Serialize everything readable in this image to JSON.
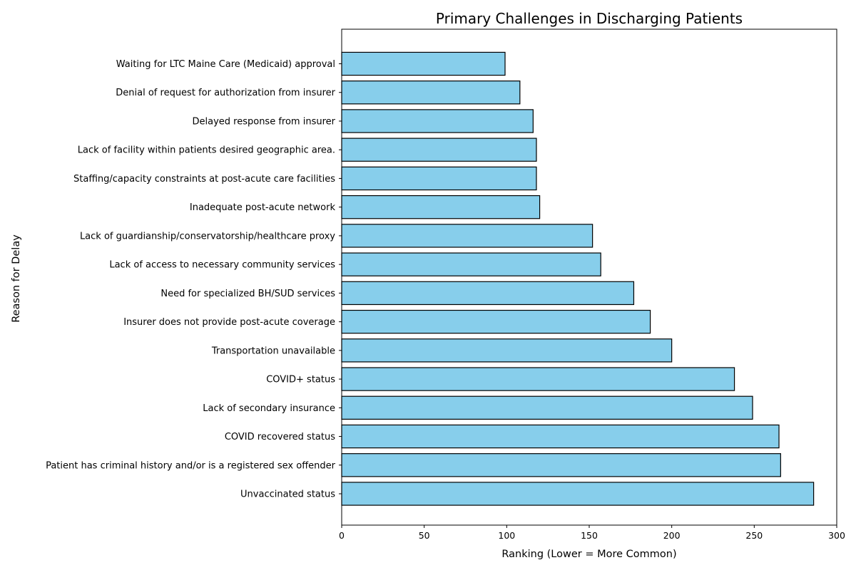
{
  "chart_data": {
    "type": "bar",
    "orientation": "horizontal",
    "title": "Primary Challenges in Discharging Patients",
    "xlabel": "Ranking (Lower = More Common)",
    "ylabel": "Reason for Delay",
    "xlim": [
      0,
      300
    ],
    "xticks": [
      0,
      50,
      100,
      150,
      200,
      250,
      300
    ],
    "grid": false,
    "bar_color": "#87CEEB",
    "bar_edge_color": "#000000",
    "categories": [
      "Waiting for LTC Maine Care (Medicaid) approval",
      "Denial of request for authorization from insurer",
      "Delayed response from insurer",
      "Lack of facility within patients desired geographic area.",
      "Staffing/capacity constraints at post-acute care facilities",
      "Inadequate post-acute network",
      "Lack of guardianship/conservatorship/healthcare proxy",
      "Lack of access to necessary community services",
      "Need for specialized BH/SUD services",
      "Insurer does not provide post-acute coverage",
      "Transportation unavailable",
      "COVID+ status",
      "Lack of secondary insurance",
      "COVID recovered status",
      "Patient has criminal history and/or is a registered sex offender",
      "Unvaccinated status"
    ],
    "values": [
      99,
      108,
      116,
      118,
      118,
      120,
      152,
      157,
      177,
      187,
      200,
      238,
      249,
      265,
      266,
      286
    ]
  }
}
